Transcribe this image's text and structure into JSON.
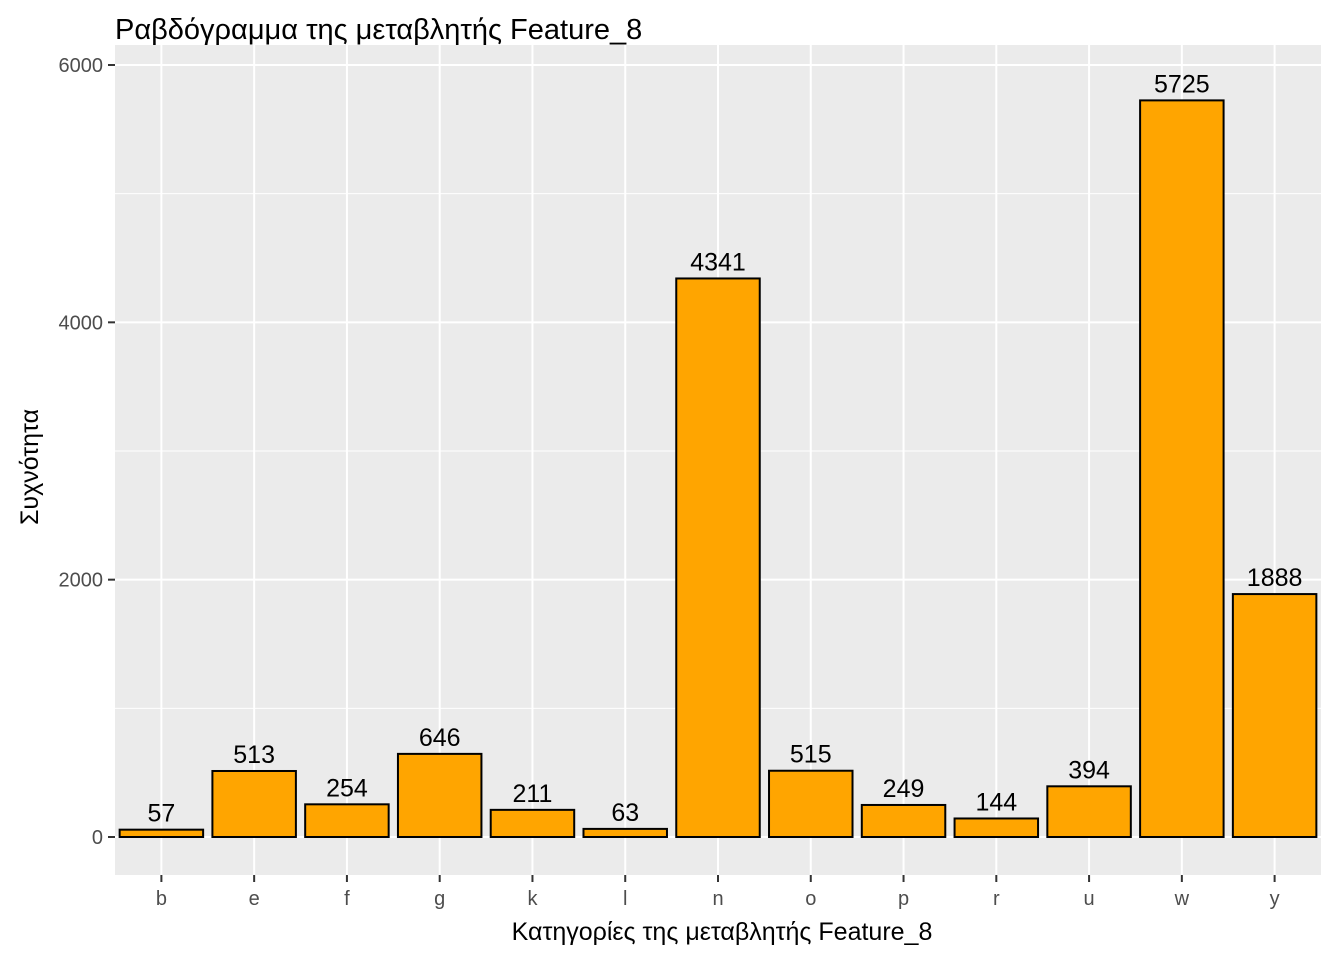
{
  "chart_data": {
    "type": "bar",
    "title": "Ραβδόγραμμα της μεταβλητής Feature_8",
    "xlabel": "Κατηγορίες της μεταβλητής Feature_8",
    "ylabel": "Συχνότητα",
    "categories": [
      "b",
      "e",
      "f",
      "g",
      "k",
      "l",
      "n",
      "o",
      "p",
      "r",
      "u",
      "w",
      "y"
    ],
    "values": [
      57,
      513,
      254,
      646,
      211,
      63,
      4341,
      515,
      249,
      144,
      394,
      5725,
      1888
    ],
    "ylim": [
      0,
      6000
    ],
    "yticks": [
      0,
      2000,
      4000,
      6000
    ],
    "grid": true,
    "colors": {
      "bar_fill": "#FFA500",
      "bar_stroke": "#000000",
      "panel": "#EBEBEB",
      "grid": "#FFFFFF"
    }
  }
}
